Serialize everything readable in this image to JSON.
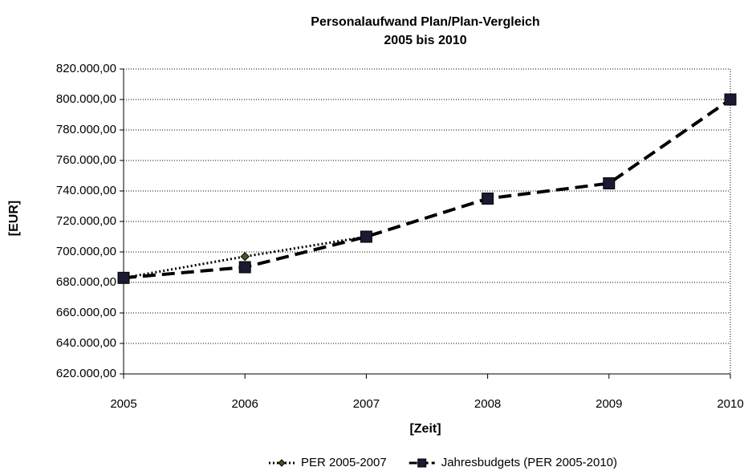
{
  "chart_data": {
    "type": "line",
    "title": [
      "Personalaufwand Plan/Plan-Vergleich",
      "2005 bis 2010"
    ],
    "xlabel": "[Zeit]",
    "ylabel": "[EUR]",
    "x": [
      2005,
      2006,
      2007,
      2008,
      2009,
      2010
    ],
    "xlim": [
      2005,
      2010
    ],
    "xticks": [
      2005,
      2006,
      2007,
      2008,
      2009,
      2010
    ],
    "ylim": [
      620000,
      820000
    ],
    "yticks": [
      {
        "value": 620000,
        "label": "620.000,00"
      },
      {
        "value": 640000,
        "label": "640.000,00"
      },
      {
        "value": 660000,
        "label": "660.000,00"
      },
      {
        "value": 680000,
        "label": "680.000,00"
      },
      {
        "value": 700000,
        "label": "700.000,00"
      },
      {
        "value": 720000,
        "label": "720.000,00"
      },
      {
        "value": 740000,
        "label": "740.000,00"
      },
      {
        "value": 760000,
        "label": "760.000,00"
      },
      {
        "value": 780000,
        "label": "780.000,00"
      },
      {
        "value": 800000,
        "label": "800.000,00"
      },
      {
        "value": 820000,
        "label": "820.000,00"
      }
    ],
    "grid": true,
    "legend": "bottom",
    "series": [
      {
        "name": "PER 2005-2007",
        "color": "#000000",
        "marker_color": "#4b5320",
        "line_style": "dotted",
        "marker": "diamond",
        "values": [
          683000,
          697000,
          710000,
          null,
          null,
          null
        ]
      },
      {
        "name": "Jahresbudgets (PER 2005-2010)",
        "color": "#000000",
        "marker_color": "#1a1a33",
        "line_style": "dashed",
        "marker": "square",
        "values": [
          683000,
          690000,
          710000,
          735000,
          745000,
          800000
        ]
      }
    ]
  }
}
